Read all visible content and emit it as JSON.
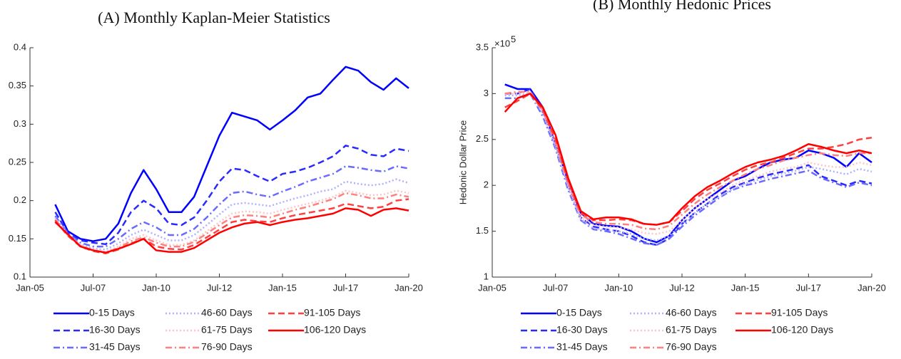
{
  "chart_data": [
    {
      "type": "line",
      "title": "(A) Monthly Kaplan-Meier Statistics",
      "x": [
        2006.0,
        2006.5,
        2007.0,
        2007.5,
        2008.0,
        2008.5,
        2009.0,
        2009.5,
        2010.0,
        2010.5,
        2011.0,
        2011.5,
        2012.0,
        2012.5,
        2013.0,
        2013.5,
        2014.0,
        2014.5,
        2015.0,
        2015.5,
        2016.0,
        2016.5,
        2017.0,
        2017.5,
        2018.0,
        2018.5,
        2019.0,
        2019.5,
        2020.0
      ],
      "xlim": [
        2005,
        2020
      ],
      "xticks": [
        {
          "value": 2005,
          "label": "Jan-05"
        },
        {
          "value": 2007.5,
          "label": "Jul-07"
        },
        {
          "value": 2010,
          "label": "Jan-10"
        },
        {
          "value": 2012.5,
          "label": "Jul-12"
        },
        {
          "value": 2015,
          "label": "Jan-15"
        },
        {
          "value": 2017.5,
          "label": "Jul-17"
        },
        {
          "value": 2020,
          "label": "Jan-20"
        }
      ],
      "ylim": [
        0.1,
        0.4
      ],
      "yticks": [
        0.1,
        0.15,
        0.2,
        0.25,
        0.3,
        0.35,
        0.4
      ],
      "series": [
        {
          "name": "0-15 Days",
          "color": "#0000ff",
          "dash": "solid",
          "values": [
            0.195,
            0.16,
            0.15,
            0.147,
            0.15,
            0.17,
            0.21,
            0.24,
            0.215,
            0.185,
            0.185,
            0.205,
            0.245,
            0.285,
            0.315,
            0.31,
            0.305,
            0.293,
            0.305,
            0.318,
            0.335,
            0.34,
            0.358,
            0.375,
            0.37,
            0.355,
            0.345,
            0.36,
            0.347
          ]
        },
        {
          "name": "16-30 Days",
          "color": "#2a2aff",
          "dash": "dashed",
          "values": [
            0.185,
            0.158,
            0.148,
            0.145,
            0.143,
            0.158,
            0.185,
            0.2,
            0.19,
            0.17,
            0.168,
            0.178,
            0.2,
            0.225,
            0.242,
            0.24,
            0.232,
            0.225,
            0.235,
            0.238,
            0.243,
            0.25,
            0.258,
            0.272,
            0.268,
            0.26,
            0.258,
            0.268,
            0.265
          ]
        },
        {
          "name": "31-45 Days",
          "color": "#6a6aff",
          "dash": "dashdot",
          "values": [
            0.18,
            0.157,
            0.145,
            0.14,
            0.14,
            0.15,
            0.163,
            0.172,
            0.165,
            0.155,
            0.155,
            0.163,
            0.178,
            0.195,
            0.21,
            0.212,
            0.208,
            0.205,
            0.212,
            0.218,
            0.225,
            0.23,
            0.235,
            0.245,
            0.243,
            0.24,
            0.238,
            0.245,
            0.242
          ]
        },
        {
          "name": "46-60 Days",
          "color": "#b0b0ff",
          "dash": "dotted",
          "values": [
            0.178,
            0.156,
            0.143,
            0.137,
            0.136,
            0.144,
            0.155,
            0.162,
            0.155,
            0.148,
            0.148,
            0.155,
            0.168,
            0.182,
            0.195,
            0.197,
            0.195,
            0.193,
            0.198,
            0.203,
            0.207,
            0.212,
            0.215,
            0.225,
            0.222,
            0.22,
            0.222,
            0.228,
            0.223
          ]
        },
        {
          "name": "61-75 Days",
          "color": "#ffc4c4",
          "dash": "dotted",
          "values": [
            0.176,
            0.155,
            0.142,
            0.136,
            0.133,
            0.14,
            0.15,
            0.155,
            0.148,
            0.142,
            0.142,
            0.148,
            0.16,
            0.172,
            0.183,
            0.186,
            0.185,
            0.183,
            0.188,
            0.192,
            0.196,
            0.2,
            0.205,
            0.213,
            0.21,
            0.207,
            0.208,
            0.213,
            0.21
          ]
        },
        {
          "name": "76-90 Days",
          "color": "#ff8080",
          "dash": "dashdot",
          "values": [
            0.175,
            0.155,
            0.141,
            0.135,
            0.132,
            0.138,
            0.147,
            0.152,
            0.145,
            0.14,
            0.14,
            0.146,
            0.157,
            0.168,
            0.178,
            0.181,
            0.18,
            0.178,
            0.183,
            0.188,
            0.192,
            0.197,
            0.202,
            0.21,
            0.207,
            0.203,
            0.203,
            0.208,
            0.205
          ]
        },
        {
          "name": "91-105 Days",
          "color": "#ff4040",
          "dash": "dashed",
          "values": [
            0.174,
            0.154,
            0.14,
            0.134,
            0.131,
            0.136,
            0.144,
            0.15,
            0.14,
            0.137,
            0.136,
            0.142,
            0.152,
            0.162,
            0.172,
            0.175,
            0.173,
            0.172,
            0.177,
            0.181,
            0.184,
            0.187,
            0.19,
            0.196,
            0.193,
            0.19,
            0.192,
            0.2,
            0.202
          ]
        },
        {
          "name": "106-120 Days",
          "color": "#ff0000",
          "dash": "solid",
          "values": [
            0.172,
            0.156,
            0.14,
            0.135,
            0.132,
            0.137,
            0.143,
            0.15,
            0.135,
            0.133,
            0.133,
            0.138,
            0.148,
            0.158,
            0.165,
            0.17,
            0.172,
            0.168,
            0.172,
            0.175,
            0.177,
            0.18,
            0.183,
            0.19,
            0.188,
            0.18,
            0.188,
            0.19,
            0.187
          ]
        }
      ]
    },
    {
      "type": "line",
      "title": "(B) Monthly Hedonic Prices",
      "y_label": "Hedonic Dollar Price",
      "y_multiplier_base": "×10",
      "y_multiplier_exponent": "5",
      "x": [
        2005.5,
        2006.0,
        2006.5,
        2007.0,
        2007.5,
        2008.0,
        2008.5,
        2009.0,
        2009.5,
        2010.0,
        2010.5,
        2011.0,
        2011.5,
        2012.0,
        2012.5,
        2013.0,
        2013.5,
        2014.0,
        2014.5,
        2015.0,
        2015.5,
        2016.0,
        2016.5,
        2017.0,
        2017.5,
        2018.0,
        2018.5,
        2019.0,
        2019.5,
        2020.0
      ],
      "xlim": [
        2005,
        2020
      ],
      "xticks": [
        {
          "value": 2005,
          "label": "Jan-05"
        },
        {
          "value": 2007.5,
          "label": "Jul-07"
        },
        {
          "value": 2010,
          "label": "Jan-10"
        },
        {
          "value": 2012.5,
          "label": "Jul-12"
        },
        {
          "value": 2015,
          "label": "Jan-15"
        },
        {
          "value": 2017.5,
          "label": "Jul-17"
        },
        {
          "value": 2020,
          "label": "Jan-20"
        }
      ],
      "ylim": [
        1,
        3.5
      ],
      "yticks": [
        1,
        1.5,
        2,
        2.5,
        3,
        3.5
      ],
      "series": [
        {
          "name": "0-15 Days",
          "color": "#0000ff",
          "dash": "solid",
          "values": [
            3.1,
            3.05,
            3.05,
            2.85,
            2.45,
            2.05,
            1.7,
            1.58,
            1.56,
            1.55,
            1.5,
            1.42,
            1.38,
            1.45,
            1.62,
            1.75,
            1.85,
            1.95,
            2.05,
            2.1,
            2.18,
            2.25,
            2.28,
            2.3,
            2.38,
            2.35,
            2.3,
            2.2,
            2.35,
            2.25
          ]
        },
        {
          "name": "16-30 Days",
          "color": "#2a2aff",
          "dash": "dashed",
          "values": [
            3.0,
            3.0,
            3.05,
            2.8,
            2.45,
            2.0,
            1.65,
            1.55,
            1.52,
            1.5,
            1.45,
            1.38,
            1.35,
            1.42,
            1.58,
            1.7,
            1.8,
            1.9,
            1.98,
            2.03,
            2.08,
            2.12,
            2.15,
            2.18,
            2.22,
            2.1,
            2.05,
            2.0,
            2.05,
            2.02
          ]
        },
        {
          "name": "31-45 Days",
          "color": "#6a6aff",
          "dash": "dashdot",
          "values": [
            2.95,
            2.95,
            3.0,
            2.75,
            2.4,
            1.95,
            1.62,
            1.52,
            1.5,
            1.47,
            1.42,
            1.37,
            1.35,
            1.42,
            1.55,
            1.67,
            1.77,
            1.87,
            1.95,
            2.0,
            2.03,
            2.07,
            2.1,
            2.13,
            2.16,
            2.08,
            2.03,
            1.98,
            2.03,
            2.0
          ]
        },
        {
          "name": "46-60 Days",
          "color": "#b0b0ff",
          "dash": "dotted",
          "values": [
            2.98,
            2.98,
            3.0,
            2.78,
            2.42,
            1.98,
            1.63,
            1.53,
            1.52,
            1.5,
            1.47,
            1.42,
            1.4,
            1.45,
            1.58,
            1.7,
            1.8,
            1.88,
            1.96,
            2.02,
            2.06,
            2.1,
            2.13,
            2.16,
            2.2,
            2.18,
            2.15,
            2.12,
            2.18,
            2.15
          ]
        },
        {
          "name": "61-75 Days",
          "color": "#ffc4c4",
          "dash": "dotted",
          "values": [
            3.0,
            3.0,
            3.02,
            2.8,
            2.45,
            2.0,
            1.65,
            1.57,
            1.55,
            1.54,
            1.52,
            1.48,
            1.47,
            1.5,
            1.62,
            1.75,
            1.85,
            1.92,
            2.0,
            2.06,
            2.1,
            2.15,
            2.18,
            2.2,
            2.25,
            2.22,
            2.2,
            2.2,
            2.25,
            2.22
          ]
        },
        {
          "name": "76-90 Days",
          "color": "#ff8080",
          "dash": "dashdot",
          "values": [
            3.0,
            3.02,
            3.02,
            2.82,
            2.48,
            2.02,
            1.68,
            1.6,
            1.58,
            1.58,
            1.57,
            1.53,
            1.52,
            1.56,
            1.68,
            1.8,
            1.9,
            1.98,
            2.05,
            2.12,
            2.18,
            2.22,
            2.27,
            2.3,
            2.33,
            2.35,
            2.33,
            2.32,
            2.35,
            2.35
          ]
        },
        {
          "name": "91-105 Days",
          "color": "#ff4040",
          "dash": "dashed",
          "values": [
            2.85,
            2.92,
            3.0,
            2.82,
            2.5,
            2.05,
            1.7,
            1.62,
            1.62,
            1.63,
            1.62,
            1.58,
            1.57,
            1.6,
            1.72,
            1.85,
            1.95,
            2.02,
            2.1,
            2.17,
            2.22,
            2.25,
            2.3,
            2.35,
            2.4,
            2.4,
            2.42,
            2.45,
            2.5,
            2.52
          ]
        },
        {
          "name": "106-120 Days",
          "color": "#ff0000",
          "dash": "solid",
          "values": [
            2.8,
            2.95,
            3.0,
            2.85,
            2.55,
            2.08,
            1.72,
            1.63,
            1.65,
            1.65,
            1.63,
            1.58,
            1.57,
            1.6,
            1.75,
            1.88,
            1.98,
            2.05,
            2.13,
            2.2,
            2.25,
            2.28,
            2.32,
            2.38,
            2.45,
            2.42,
            2.38,
            2.35,
            2.38,
            2.35
          ]
        }
      ]
    }
  ]
}
